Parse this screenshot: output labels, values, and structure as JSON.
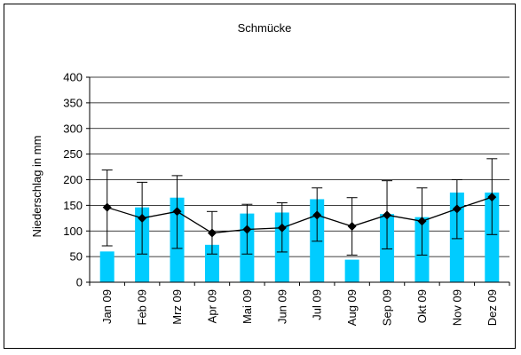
{
  "chart_data": {
    "type": "bar",
    "title": "Schmücke",
    "xlabel": "",
    "ylabel": "Niederschlag in mm",
    "ylim": [
      0,
      400
    ],
    "yticks": [
      0,
      50,
      100,
      150,
      200,
      250,
      300,
      350,
      400
    ],
    "categories": [
      "Jan 09",
      "Feb 09",
      "Mrz 09",
      "Apr 09",
      "Mai 09",
      "Jun 09",
      "Jul 09",
      "Aug 09",
      "Sep 09",
      "Okt 09",
      "Nov 09",
      "Dez 09"
    ],
    "grid": true,
    "legend": "none",
    "series": [
      {
        "kind": "bar",
        "color": "#00ccff",
        "values": [
          60,
          146,
          165,
          73,
          134,
          136,
          162,
          44,
          133,
          127,
          175,
          175
        ]
      },
      {
        "kind": "line",
        "marker": "diamond",
        "color": "#000000",
        "values": [
          146,
          125,
          138,
          96,
          103,
          106,
          131,
          109,
          131,
          119,
          143,
          166
        ],
        "error_low": [
          71,
          55,
          66,
          55,
          55,
          59,
          80,
          53,
          65,
          53,
          85,
          93
        ],
        "error_high": [
          219,
          195,
          208,
          138,
          152,
          155,
          184,
          165,
          198,
          184,
          200,
          241
        ]
      }
    ]
  }
}
